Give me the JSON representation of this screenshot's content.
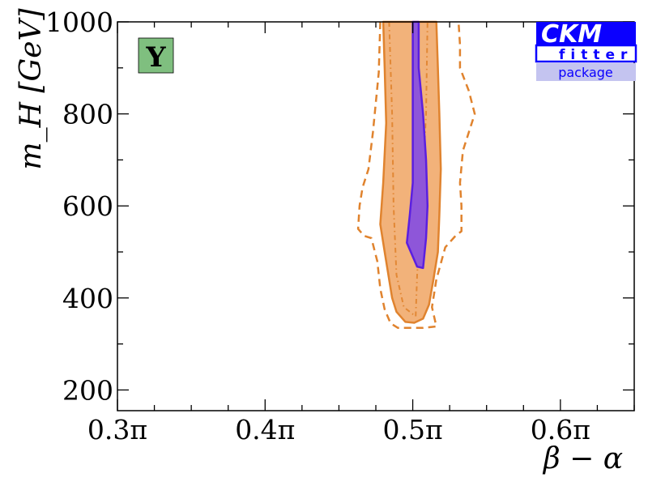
{
  "chart_data": {
    "type": "contour",
    "xlabel": "β − α",
    "ylabel": "m_H [GeV]",
    "xlim": [
      0.3,
      0.65
    ],
    "ylim": [
      155,
      1000
    ],
    "x_ticks": [
      0.3,
      0.4,
      0.5,
      0.6
    ],
    "x_tick_labels": [
      "0.3π",
      "0.4π",
      "0.5π",
      "0.6π"
    ],
    "y_ticks": [
      200,
      400,
      600,
      800,
      1000
    ],
    "y_tick_labels": [
      "200",
      "400",
      "600",
      "800",
      "1000"
    ],
    "tag": "Y",
    "logo": {
      "line1": "CKM",
      "line2": "fitter",
      "line3": "package"
    },
    "colors": {
      "orange_fill": "#f2b27a",
      "orange_line": "#e0832e",
      "purple_fill": "#8e56d9",
      "purple_line": "#5b1fe0",
      "tag_fill": "#7fbf7f",
      "logo_blue": "#0b00ff",
      "logo_light": "#c4c4f0"
    },
    "regions": [
      {
        "name": "orange-solid",
        "style": "filled",
        "points": [
          [
            0.48,
            1000
          ],
          [
            0.481,
            900
          ],
          [
            0.482,
            780
          ],
          [
            0.48,
            650
          ],
          [
            0.478,
            560
          ],
          [
            0.481,
            500
          ],
          [
            0.484,
            440
          ],
          [
            0.486,
            400
          ],
          [
            0.489,
            370
          ],
          [
            0.495,
            348
          ],
          [
            0.501,
            346
          ],
          [
            0.507,
            355
          ],
          [
            0.511,
            385
          ],
          [
            0.514,
            440
          ],
          [
            0.517,
            500
          ],
          [
            0.518,
            580
          ],
          [
            0.519,
            680
          ],
          [
            0.518,
            800
          ],
          [
            0.517,
            900
          ],
          [
            0.516,
            1000
          ]
        ]
      },
      {
        "name": "orange-dashed",
        "style": "dashed",
        "points": [
          [
            0.478,
            1000
          ],
          [
            0.477,
            890
          ],
          [
            0.473,
            760
          ],
          [
            0.47,
            680
          ],
          [
            0.466,
            640
          ],
          [
            0.464,
            600
          ],
          [
            0.463,
            550
          ],
          [
            0.467,
            535
          ],
          [
            0.472,
            530
          ],
          [
            0.476,
            480
          ],
          [
            0.478,
            420
          ],
          [
            0.481,
            375
          ],
          [
            0.485,
            345
          ],
          [
            0.49,
            335
          ],
          [
            0.507,
            335
          ],
          [
            0.516,
            338
          ],
          [
            0.513,
            380
          ],
          [
            0.516,
            440
          ],
          [
            0.522,
            510
          ],
          [
            0.529,
            535
          ],
          [
            0.533,
            545
          ],
          [
            0.533,
            600
          ],
          [
            0.532,
            650
          ],
          [
            0.534,
            720
          ],
          [
            0.538,
            760
          ],
          [
            0.542,
            800
          ],
          [
            0.538,
            850
          ],
          [
            0.532,
            900
          ],
          [
            0.532,
            950
          ],
          [
            0.531,
            1000
          ]
        ]
      },
      {
        "name": "orange-dashdot",
        "style": "dashdot",
        "points": [
          [
            0.484,
            1000
          ],
          [
            0.486,
            800
          ],
          [
            0.487,
            600
          ],
          [
            0.489,
            450
          ],
          [
            0.494,
            380
          ],
          [
            0.502,
            360
          ],
          [
            0.503,
            450
          ],
          [
            0.506,
            600
          ],
          [
            0.509,
            800
          ],
          [
            0.51,
            1000
          ]
        ]
      },
      {
        "name": "purple",
        "style": "filled",
        "points": [
          [
            0.5,
            1000
          ],
          [
            0.5,
            900
          ],
          [
            0.5,
            780
          ],
          [
            0.5,
            650
          ],
          [
            0.498,
            580
          ],
          [
            0.496,
            520
          ],
          [
            0.5,
            490
          ],
          [
            0.503,
            468
          ],
          [
            0.507,
            465
          ],
          [
            0.509,
            530
          ],
          [
            0.51,
            600
          ],
          [
            0.509,
            700
          ],
          [
            0.507,
            800
          ],
          [
            0.504,
            900
          ],
          [
            0.504,
            1000
          ]
        ]
      }
    ]
  }
}
